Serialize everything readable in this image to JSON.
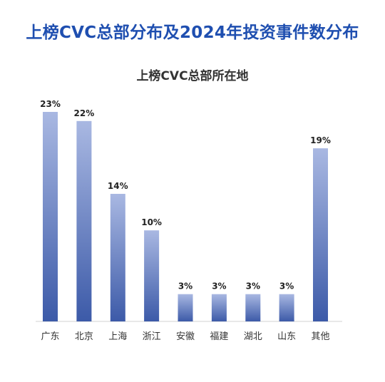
{
  "page": {
    "title": "上榜CVC总部分布及2024年投资事件数分布"
  },
  "chart_data": {
    "type": "bar",
    "title": "上榜CVC总部所在地",
    "categories": [
      "广东",
      "北京",
      "上海",
      "浙江",
      "安徽",
      "福建",
      "湖北",
      "山东",
      "其他"
    ],
    "values": [
      23,
      22,
      14,
      10,
      3,
      3,
      3,
      3,
      19
    ],
    "value_labels": [
      "23%",
      "22%",
      "14%",
      "10%",
      "3%",
      "3%",
      "3%",
      "3%",
      "19%"
    ],
    "unit": "%",
    "ylim": [
      0,
      23
    ],
    "grid": false,
    "colors": {
      "bar_top": "#a9b8e2",
      "bar_bottom": "#3c5aa8",
      "axis": "#d0d0d0"
    }
  }
}
